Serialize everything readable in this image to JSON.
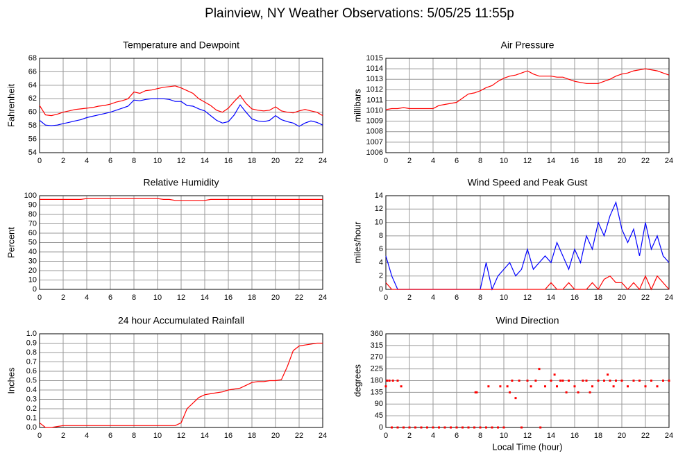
{
  "title": "Plainview, NY Weather Observations: 5/05/25 11:55p",
  "chart_data": [
    {
      "type": "line",
      "title": "Temperature and Dewpoint",
      "y_label": "Fahrenheit",
      "x": [
        0,
        0.5,
        1,
        1.5,
        2,
        2.5,
        3,
        3.5,
        4,
        4.5,
        5,
        5.5,
        6,
        6.5,
        7,
        7.5,
        8,
        8.5,
        9,
        9.5,
        10,
        10.5,
        11,
        11.5,
        12,
        12.5,
        13,
        13.5,
        14,
        14.5,
        15,
        15.5,
        16,
        16.5,
        17,
        17.5,
        18,
        18.5,
        19,
        19.5,
        20,
        20.5,
        21,
        21.5,
        22,
        22.5,
        23,
        23.5,
        24
      ],
      "series": [
        {
          "color": "#ff0000",
          "values": [
            61,
            59.6,
            59.5,
            59.7,
            60,
            60.2,
            60.4,
            60.5,
            60.6,
            60.7,
            60.9,
            61,
            61.2,
            61.5,
            61.7,
            62,
            63,
            62.8,
            63.2,
            63.3,
            63.5,
            63.7,
            63.8,
            63.9,
            63.6,
            63.2,
            62.8,
            62,
            61.5,
            61,
            60.3,
            60,
            60.6,
            61.6,
            62.5,
            61.3,
            60.5,
            60.3,
            60.2,
            60.3,
            60.8,
            60.2,
            60,
            59.9,
            60.2,
            60.4,
            60.2,
            60,
            59.5
          ]
        },
        {
          "color": "#0000ff",
          "values": [
            58.8,
            58.1,
            58,
            58.1,
            58.3,
            58.5,
            58.7,
            58.9,
            59.2,
            59.4,
            59.6,
            59.8,
            60,
            60.3,
            60.6,
            60.9,
            61.8,
            61.7,
            61.9,
            62,
            62,
            62,
            61.9,
            61.6,
            61.6,
            61,
            60.9,
            60.5,
            60.2,
            59.5,
            58.8,
            58.4,
            58.6,
            59.6,
            61.1,
            60,
            59,
            58.7,
            58.6,
            58.8,
            59.5,
            58.9,
            58.6,
            58.4,
            57.9,
            58.4,
            58.7,
            58.5,
            58.1
          ]
        }
      ],
      "xlim": [
        0,
        24
      ],
      "xticks": [
        0,
        2,
        4,
        6,
        8,
        10,
        12,
        14,
        16,
        18,
        20,
        22,
        24
      ],
      "ylim": [
        54,
        68
      ],
      "yticks": [
        54,
        56,
        58,
        60,
        62,
        64,
        66,
        68
      ],
      "grid": true
    },
    {
      "type": "line",
      "title": "Air Pressure",
      "y_label": "millibars",
      "x": [
        0,
        0.5,
        1,
        1.5,
        2,
        2.5,
        3,
        3.5,
        4,
        4.5,
        5,
        5.5,
        6,
        6.5,
        7,
        7.5,
        8,
        8.5,
        9,
        9.5,
        10,
        10.5,
        11,
        11.5,
        12,
        12.5,
        13,
        13.5,
        14,
        14.5,
        15,
        15.5,
        16,
        16.5,
        17,
        17.5,
        18,
        18.5,
        19,
        19.5,
        20,
        20.5,
        21,
        21.5,
        22,
        22.5,
        23,
        23.5,
        24
      ],
      "series": [
        {
          "color": "#ff0000",
          "values": [
            1010.1,
            1010.2,
            1010.2,
            1010.3,
            1010.2,
            1010.2,
            1010.2,
            1010.2,
            1010.2,
            1010.5,
            1010.6,
            1010.7,
            1010.8,
            1011.2,
            1011.6,
            1011.7,
            1011.9,
            1012.2,
            1012.4,
            1012.8,
            1013.1,
            1013.3,
            1013.4,
            1013.6,
            1013.8,
            1013.5,
            1013.3,
            1013.3,
            1013.3,
            1013.2,
            1013.2,
            1013,
            1012.8,
            1012.7,
            1012.6,
            1012.6,
            1012.6,
            1012.8,
            1013,
            1013.3,
            1013.5,
            1013.6,
            1013.8,
            1013.9,
            1014,
            1013.9,
            1013.8,
            1013.6,
            1013.4
          ]
        }
      ],
      "xlim": [
        0,
        24
      ],
      "xticks": [
        0,
        2,
        4,
        6,
        8,
        10,
        12,
        14,
        16,
        18,
        20,
        22,
        24
      ],
      "ylim": [
        1006,
        1015
      ],
      "yticks": [
        1006,
        1007,
        1008,
        1009,
        1010,
        1011,
        1012,
        1013,
        1014,
        1015
      ],
      "grid": true
    },
    {
      "type": "line",
      "title": "Relative Humidity",
      "y_label": "Percent",
      "x": [
        0,
        0.5,
        1,
        1.5,
        2,
        2.5,
        3,
        3.5,
        4,
        4.5,
        5,
        5.5,
        6,
        6.5,
        7,
        7.5,
        8,
        8.5,
        9,
        9.5,
        10,
        10.5,
        11,
        11.5,
        12,
        12.5,
        13,
        13.5,
        14,
        14.5,
        15,
        15.5,
        16,
        16.5,
        17,
        17.5,
        18,
        18.5,
        19,
        19.5,
        20,
        20.5,
        21,
        21.5,
        22,
        22.5,
        23,
        23.5,
        24
      ],
      "series": [
        {
          "color": "#ff0000",
          "values": [
            96,
            96,
            96,
            96,
            96,
            96,
            96,
            96,
            97,
            97,
            97,
            97,
            97,
            97,
            97,
            97,
            97,
            97,
            97,
            97,
            97,
            96,
            96,
            95,
            95,
            95,
            95,
            95,
            95,
            96,
            96,
            96,
            96,
            96,
            96,
            96,
            96,
            96,
            96,
            96,
            96,
            96,
            96,
            96,
            96,
            96,
            96,
            96,
            96
          ]
        }
      ],
      "xlim": [
        0,
        24
      ],
      "xticks": [
        0,
        2,
        4,
        6,
        8,
        10,
        12,
        14,
        16,
        18,
        20,
        22,
        24
      ],
      "ylim": [
        0,
        100
      ],
      "yticks": [
        0,
        10,
        20,
        30,
        40,
        50,
        60,
        70,
        80,
        90,
        100
      ],
      "grid": true
    },
    {
      "type": "line",
      "title": "Wind Speed and Peak Gust",
      "y_label": "miles/hour",
      "x": [
        0,
        0.5,
        1,
        1.5,
        2,
        2.5,
        3,
        3.5,
        4,
        4.5,
        5,
        5.5,
        6,
        6.5,
        7,
        7.5,
        8,
        8.5,
        9,
        9.5,
        10,
        10.5,
        11,
        11.5,
        12,
        12.5,
        13,
        13.5,
        14,
        14.5,
        15,
        15.5,
        16,
        16.5,
        17,
        17.5,
        18,
        18.5,
        19,
        19.5,
        20,
        20.5,
        21,
        21.5,
        22,
        22.5,
        23,
        23.5,
        24
      ],
      "series": [
        {
          "color": "#0000ff",
          "values": [
            5,
            2,
            0,
            0,
            0,
            0,
            0,
            0,
            0,
            0,
            0,
            0,
            0,
            0,
            0,
            0,
            0,
            4,
            0,
            2,
            3,
            4,
            2,
            3,
            6,
            3,
            4,
            5,
            4,
            7,
            5,
            3,
            6,
            4,
            8,
            6,
            10,
            8,
            11,
            13,
            9,
            7,
            9,
            5,
            10,
            6,
            8,
            5,
            4
          ]
        },
        {
          "color": "#ff0000",
          "values": [
            1,
            0,
            0,
            0,
            0,
            0,
            0,
            0,
            0,
            0,
            0,
            0,
            0,
            0,
            0,
            0,
            0,
            0,
            0,
            0,
            0,
            0,
            0,
            0,
            0,
            0,
            0,
            0,
            1,
            0,
            0,
            1,
            0,
            0,
            0,
            1,
            0,
            1.5,
            2,
            1,
            1,
            0,
            1,
            0,
            2,
            0,
            2,
            1,
            0
          ]
        }
      ],
      "xlim": [
        0,
        24
      ],
      "xticks": [
        0,
        2,
        4,
        6,
        8,
        10,
        12,
        14,
        16,
        18,
        20,
        22,
        24
      ],
      "ylim": [
        0,
        14
      ],
      "yticks": [
        0,
        2,
        4,
        6,
        8,
        10,
        12,
        14
      ],
      "grid": true
    },
    {
      "type": "line",
      "title": "24 hour Accumulated Rainfall",
      "y_label": "Inches",
      "x": [
        0,
        0.5,
        1,
        1.5,
        2,
        2.5,
        3,
        3.5,
        4,
        4.5,
        5,
        5.5,
        6,
        6.5,
        7,
        7.5,
        8,
        8.5,
        9,
        9.5,
        10,
        10.5,
        11,
        11.5,
        12,
        12.5,
        13,
        13.5,
        14,
        14.5,
        15,
        15.5,
        16,
        16.5,
        17,
        17.5,
        18,
        18.5,
        19,
        19.5,
        20,
        20.5,
        21,
        21.5,
        22,
        22.5,
        23,
        23.5,
        24
      ],
      "series": [
        {
          "color": "#ff0000",
          "values": [
            0.05,
            0,
            0,
            0.01,
            0.02,
            0.02,
            0.02,
            0.02,
            0.02,
            0.02,
            0.02,
            0.02,
            0.02,
            0.02,
            0.02,
            0.02,
            0.02,
            0.02,
            0.02,
            0.02,
            0.02,
            0.02,
            0.02,
            0.02,
            0.05,
            0.2,
            0.26,
            0.32,
            0.35,
            0.36,
            0.37,
            0.38,
            0.4,
            0.41,
            0.42,
            0.45,
            0.48,
            0.49,
            0.49,
            0.5,
            0.5,
            0.51,
            0.65,
            0.82,
            0.87,
            0.88,
            0.89,
            0.9,
            0.9
          ]
        }
      ],
      "xlim": [
        0,
        24
      ],
      "xticks": [
        0,
        2,
        4,
        6,
        8,
        10,
        12,
        14,
        16,
        18,
        20,
        22,
        24
      ],
      "ylim": [
        0,
        1
      ],
      "yticks": [
        {
          "value": 0,
          "label": "0.0"
        },
        0.1,
        0.2,
        0.3,
        0.4,
        0.5,
        0.6,
        0.7,
        0.8,
        0.9,
        {
          "value": 1,
          "label": "1.0"
        }
      ],
      "grid": true
    },
    {
      "type": "scatter",
      "title": "Wind Direction",
      "y_label": "degrees",
      "x_label": "Local Time (hour)",
      "x": [
        0,
        0.1,
        0.3,
        0.6,
        1,
        1.3,
        0.5,
        1,
        1.5,
        2,
        2.5,
        3,
        3.5,
        4,
        4.5,
        5,
        5.5,
        6,
        6.5,
        7,
        7.5,
        7.6,
        7.7,
        8,
        8.5,
        8.7,
        9,
        9.5,
        9.7,
        10,
        10.3,
        10.5,
        10.7,
        11,
        11.3,
        11.5,
        12,
        12.3,
        12.7,
        13,
        13.1,
        13.5,
        14,
        14.3,
        14.5,
        14.8,
        15,
        15.3,
        15.5,
        16,
        16.3,
        16.7,
        17,
        17.3,
        17.5,
        18,
        18.5,
        18.8,
        19,
        19.3,
        19.5,
        20,
        20.5,
        21,
        21.5,
        22,
        22.5,
        23,
        23.5,
        24
      ],
      "series": [
        {
          "color": "#ff0000",
          "values": [
            158,
            180,
            180,
            180,
            180,
            158,
            0,
            0,
            0,
            0,
            0,
            0,
            0,
            0,
            0,
            0,
            0,
            0,
            0,
            0,
            0,
            135,
            135,
            0,
            0,
            158,
            0,
            0,
            158,
            0,
            158,
            135,
            180,
            113,
            180,
            0,
            180,
            158,
            180,
            225,
            0,
            158,
            180,
            203,
            158,
            180,
            180,
            135,
            180,
            158,
            135,
            180,
            180,
            135,
            158,
            180,
            180,
            203,
            180,
            158,
            180,
            180,
            158,
            180,
            180,
            158,
            180,
            158,
            180,
            180
          ]
        }
      ],
      "xlim": [
        0,
        24
      ],
      "xticks": [
        0,
        2,
        4,
        6,
        8,
        10,
        12,
        14,
        16,
        18,
        20,
        22,
        24
      ],
      "ylim": [
        0,
        360
      ],
      "yticks": [
        0,
        45,
        90,
        135,
        180,
        225,
        270,
        315,
        360
      ],
      "grid": true
    }
  ]
}
